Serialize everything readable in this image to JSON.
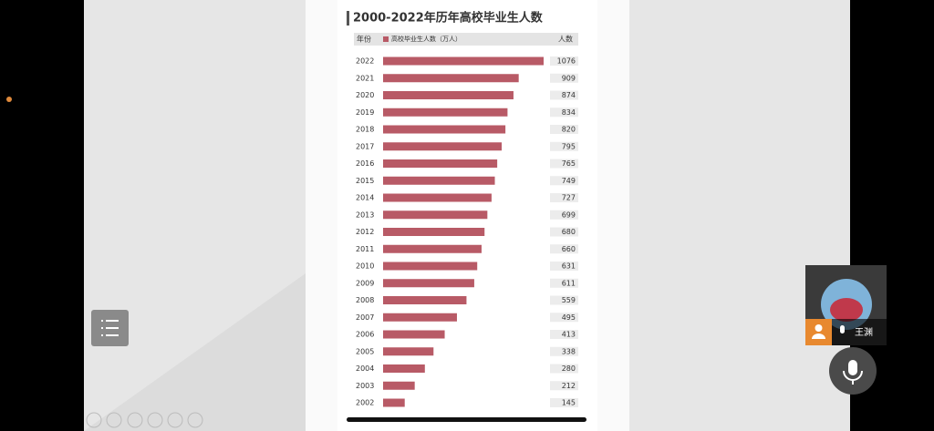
{
  "chart_data": {
    "type": "bar",
    "orientation": "horizontal",
    "title": "2000-2022年历年高校毕业生人数",
    "year_header": "年份",
    "value_header": "人数",
    "categories": [
      "2022",
      "2021",
      "2020",
      "2019",
      "2018",
      "2017",
      "2016",
      "2015",
      "2014",
      "2013",
      "2012",
      "2011",
      "2010",
      "2009",
      "2008",
      "2007",
      "2006",
      "2005",
      "2004",
      "2003",
      "2002"
    ],
    "series": [
      {
        "name": "高校毕业生人数（万人）",
        "color": "#b85a66",
        "values": [
          1076,
          909,
          874,
          834,
          820,
          795,
          765,
          749,
          727,
          699,
          680,
          660,
          631,
          611,
          559,
          495,
          413,
          338,
          280,
          212,
          145
        ]
      }
    ]
  },
  "ui": {
    "participant_name": "王渊"
  }
}
